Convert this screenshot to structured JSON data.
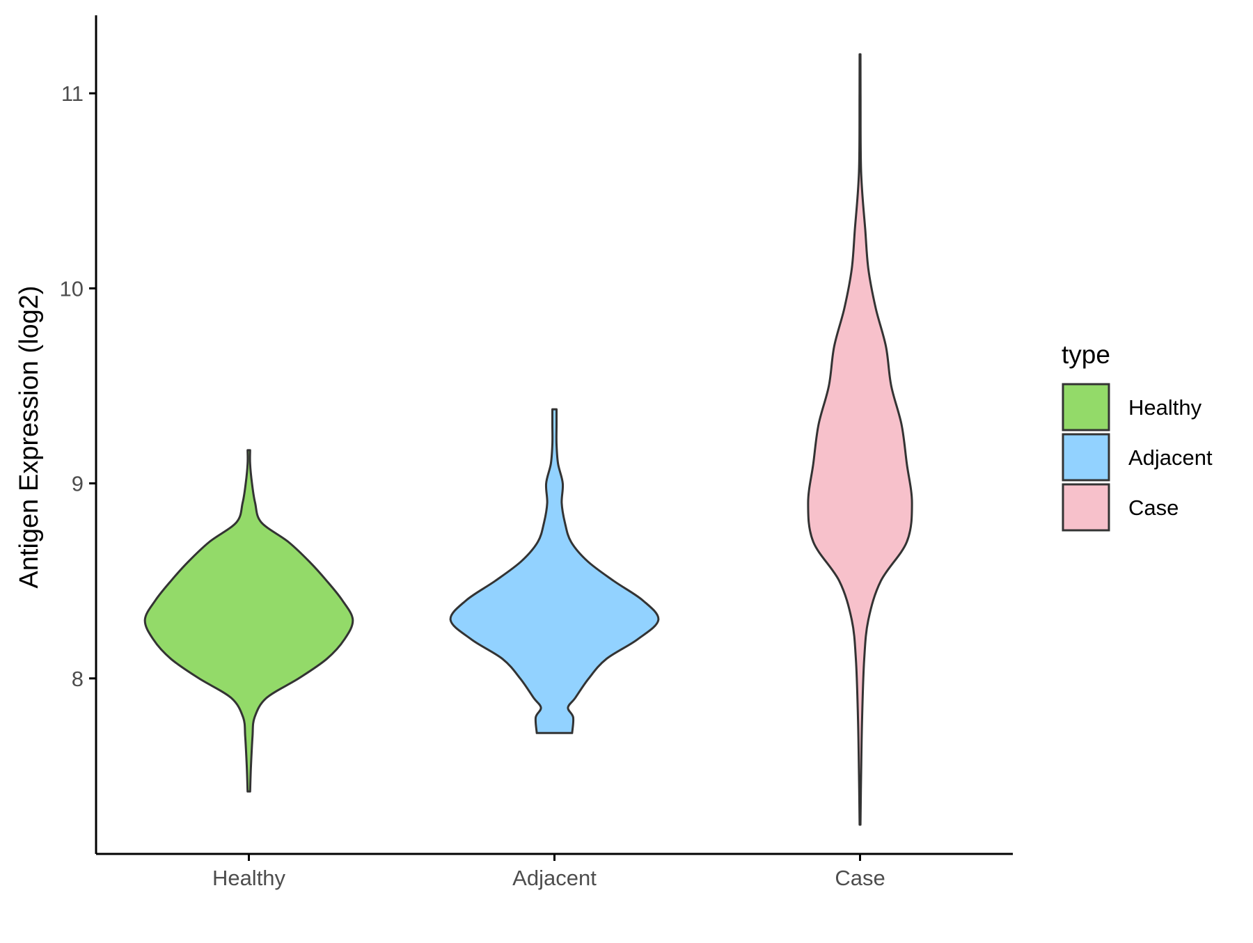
{
  "chart_data": {
    "type": "violin",
    "title": "",
    "xlabel": "",
    "ylabel": "Antigen Expression (log2)",
    "categories": [
      "Healthy",
      "Adjacent",
      "Case"
    ],
    "ylim": [
      7.1,
      11.4
    ],
    "yticks": [
      8,
      9,
      10,
      11
    ],
    "grid": false,
    "legend": {
      "title": "type",
      "position": "right"
    },
    "series": [
      {
        "name": "Healthy",
        "color": "#93DA69",
        "min": 7.42,
        "max": 9.17,
        "density": [
          [
            7.42,
            0.012
          ],
          [
            7.55,
            0.02
          ],
          [
            7.7,
            0.035
          ],
          [
            7.8,
            0.055
          ],
          [
            7.9,
            0.17
          ],
          [
            8.0,
            0.48
          ],
          [
            8.1,
            0.75
          ],
          [
            8.2,
            0.92
          ],
          [
            8.3,
            1.0
          ],
          [
            8.4,
            0.9
          ],
          [
            8.5,
            0.75
          ],
          [
            8.6,
            0.58
          ],
          [
            8.7,
            0.38
          ],
          [
            8.8,
            0.12
          ],
          [
            8.9,
            0.06
          ],
          [
            9.0,
            0.03
          ],
          [
            9.1,
            0.012
          ],
          [
            9.17,
            0.012
          ]
        ]
      },
      {
        "name": "Adjacent",
        "color": "#92D2FF",
        "min": 7.72,
        "max": 9.38,
        "density": [
          [
            7.72,
            0.17
          ],
          [
            7.8,
            0.18
          ],
          [
            7.85,
            0.13
          ],
          [
            7.9,
            0.2
          ],
          [
            8.0,
            0.33
          ],
          [
            8.1,
            0.5
          ],
          [
            8.2,
            0.8
          ],
          [
            8.3,
            1.0
          ],
          [
            8.4,
            0.85
          ],
          [
            8.5,
            0.57
          ],
          [
            8.6,
            0.32
          ],
          [
            8.7,
            0.16
          ],
          [
            8.8,
            0.1
          ],
          [
            8.9,
            0.07
          ],
          [
            9.0,
            0.08
          ],
          [
            9.1,
            0.035
          ],
          [
            9.2,
            0.02
          ],
          [
            9.3,
            0.02
          ],
          [
            9.38,
            0.02
          ]
        ]
      },
      {
        "name": "Case",
        "color": "#F7C1CB",
        "min": 7.25,
        "max": 11.2,
        "density": [
          [
            7.25,
            0.004
          ],
          [
            7.5,
            0.01
          ],
          [
            7.8,
            0.02
          ],
          [
            8.1,
            0.04
          ],
          [
            8.3,
            0.08
          ],
          [
            8.5,
            0.2
          ],
          [
            8.7,
            0.45
          ],
          [
            8.9,
            0.5
          ],
          [
            9.1,
            0.45
          ],
          [
            9.3,
            0.4
          ],
          [
            9.5,
            0.3
          ],
          [
            9.7,
            0.25
          ],
          [
            9.9,
            0.15
          ],
          [
            10.1,
            0.08
          ],
          [
            10.3,
            0.05
          ],
          [
            10.6,
            0.01
          ],
          [
            11.0,
            0.005
          ],
          [
            11.2,
            0.004
          ]
        ]
      }
    ]
  }
}
